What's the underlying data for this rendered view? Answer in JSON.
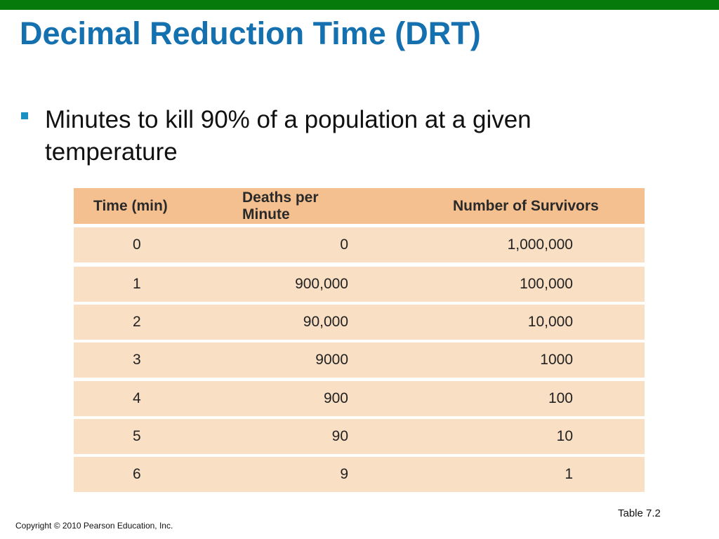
{
  "slide": {
    "title": "Decimal Reduction Time (DRT)",
    "bullet": "Minutes to kill 90% of a population at a given temperature",
    "caption": "Table 7.2",
    "copyright": "Copyright © 2010 Pearson Education, Inc."
  },
  "colors": {
    "top_bar": "#067a0b",
    "title": "#1570b0",
    "bullet_marker": "#1a8fc2",
    "table_header_bg": "#f4c08f",
    "table_row_bg": "#f9dfc4"
  },
  "table": {
    "headers": [
      "Time (min)",
      "Deaths per Minute",
      "Number of Survivors"
    ],
    "rows": [
      [
        "0",
        "0",
        "1,000,000"
      ],
      [
        "1",
        "900,000",
        "100,000"
      ],
      [
        "2",
        "90,000",
        "10,000"
      ],
      [
        "3",
        "9000",
        "1000"
      ],
      [
        "4",
        "900",
        "100"
      ],
      [
        "5",
        "90",
        "10"
      ],
      [
        "6",
        "9",
        "1"
      ]
    ]
  }
}
